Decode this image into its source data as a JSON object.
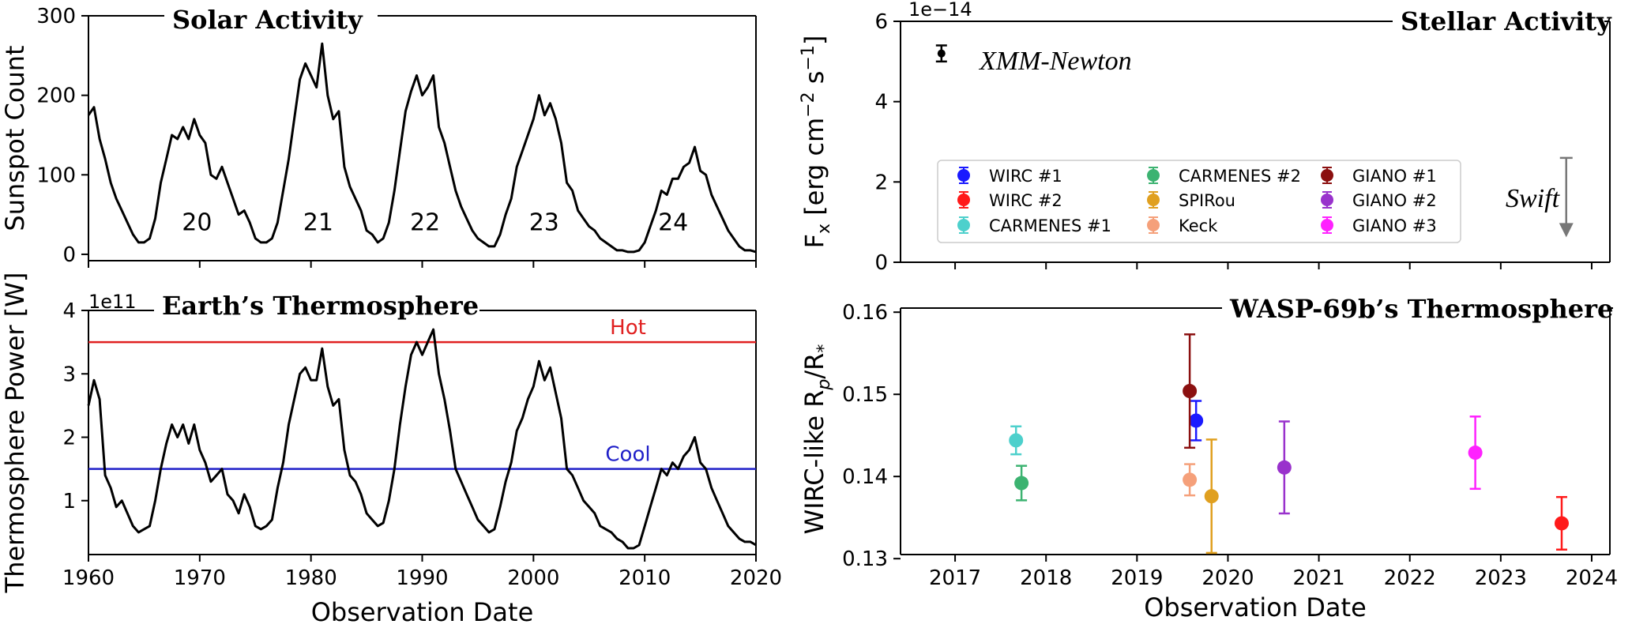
{
  "chart_data": [
    {
      "id": "solar",
      "type": "line",
      "title": "Solar Activity",
      "xlabel": "",
      "ylabel": "Sunspot Count",
      "xlim": [
        1960,
        2020
      ],
      "ylim": [
        -8,
        300
      ],
      "yticks": [
        0,
        100,
        200,
        300
      ],
      "xticks": [
        1960,
        1970,
        1980,
        1990,
        2000,
        2010,
        2020
      ],
      "cycle_labels": [
        {
          "text": "20",
          "x": 1968.4,
          "y": 40
        },
        {
          "text": "21",
          "x": 1979.3,
          "y": 40
        },
        {
          "text": "22",
          "x": 1988.9,
          "y": 40
        },
        {
          "text": "23",
          "x": 1999.6,
          "y": 40
        },
        {
          "text": "24",
          "x": 2011.2,
          "y": 40
        }
      ],
      "series": [
        {
          "name": "Sunspot Count",
          "color": "#000000",
          "x": [
            1960,
            1960.5,
            1961,
            1961.5,
            1962,
            1962.5,
            1963,
            1963.5,
            1964,
            1964.5,
            1965,
            1965.5,
            1966,
            1966.5,
            1967,
            1967.5,
            1968,
            1968.5,
            1969,
            1969.5,
            1970,
            1970.5,
            1971,
            1971.5,
            1972,
            1972.5,
            1973,
            1973.5,
            1974,
            1974.5,
            1975,
            1975.5,
            1976,
            1976.5,
            1977,
            1977.5,
            1978,
            1978.5,
            1979,
            1979.5,
            1980,
            1980.5,
            1981,
            1981.5,
            1982,
            1982.5,
            1983,
            1983.5,
            1984,
            1984.5,
            1985,
            1985.5,
            1986,
            1986.5,
            1987,
            1987.5,
            1988,
            1988.5,
            1989,
            1989.5,
            1990,
            1990.5,
            1991,
            1991.5,
            1992,
            1992.5,
            1993,
            1993.5,
            1994,
            1994.5,
            1995,
            1995.5,
            1996,
            1996.5,
            1997,
            1997.5,
            1998,
            1998.5,
            1999,
            1999.5,
            2000,
            2000.5,
            2001,
            2001.5,
            2002,
            2002.5,
            2003,
            2003.5,
            2004,
            2004.5,
            2005,
            2005.5,
            2006,
            2006.5,
            2007,
            2007.5,
            2008,
            2008.5,
            2009,
            2009.5,
            2010,
            2010.5,
            2011,
            2011.5,
            2012,
            2012.5,
            2013,
            2013.5,
            2014,
            2014.5,
            2015,
            2015.5,
            2016,
            2016.5,
            2017,
            2017.5,
            2018,
            2018.5,
            2019,
            2019.5,
            2020
          ],
          "y": [
            175,
            185,
            145,
            120,
            90,
            70,
            55,
            40,
            25,
            15,
            15,
            20,
            45,
            90,
            120,
            150,
            145,
            160,
            145,
            170,
            150,
            140,
            100,
            95,
            110,
            90,
            70,
            50,
            55,
            40,
            20,
            15,
            15,
            20,
            40,
            80,
            120,
            170,
            220,
            240,
            225,
            210,
            265,
            200,
            170,
            180,
            110,
            85,
            70,
            55,
            30,
            25,
            15,
            20,
            40,
            80,
            130,
            180,
            205,
            225,
            200,
            210,
            225,
            160,
            140,
            110,
            80,
            60,
            45,
            30,
            20,
            15,
            10,
            10,
            25,
            50,
            70,
            110,
            130,
            150,
            170,
            200,
            175,
            190,
            170,
            140,
            90,
            80,
            55,
            45,
            35,
            30,
            20,
            15,
            10,
            5,
            5,
            3,
            3,
            5,
            15,
            35,
            55,
            80,
            75,
            95,
            95,
            110,
            115,
            135,
            105,
            100,
            75,
            60,
            45,
            30,
            20,
            10,
            5,
            5,
            3
          ]
        }
      ]
    },
    {
      "id": "earth",
      "type": "line",
      "title": "Earth’s Thermosphere",
      "xlabel": "Observation Date",
      "ylabel": "Thermosphere Power [W]",
      "y_multiplier": "1e11",
      "xlim": [
        1960,
        2020
      ],
      "ylim": [
        0.15,
        4.0
      ],
      "yticks": [
        1,
        2,
        3,
        4
      ],
      "xticks": [
        1960,
        1970,
        1980,
        1990,
        2000,
        2010,
        2020
      ],
      "hlines": [
        {
          "name": "Hot",
          "value": 3.5,
          "color": "#e02020"
        },
        {
          "name": "Cool",
          "value": 1.5,
          "color": "#1f1fc8"
        }
      ],
      "series": [
        {
          "name": "Thermosphere Power",
          "color": "#000000",
          "x": [
            1960,
            1960.5,
            1961,
            1961.5,
            1962,
            1962.5,
            1963,
            1963.5,
            1964,
            1964.5,
            1965,
            1965.5,
            1966,
            1966.5,
            1967,
            1967.5,
            1968,
            1968.5,
            1969,
            1969.5,
            1970,
            1970.5,
            1971,
            1971.5,
            1972,
            1972.5,
            1973,
            1973.5,
            1974,
            1974.5,
            1975,
            1975.5,
            1976,
            1976.5,
            1977,
            1977.5,
            1978,
            1978.5,
            1979,
            1979.5,
            1980,
            1980.5,
            1981,
            1981.5,
            1982,
            1982.5,
            1983,
            1983.5,
            1984,
            1984.5,
            1985,
            1985.5,
            1986,
            1986.5,
            1987,
            1987.5,
            1988,
            1988.5,
            1989,
            1989.5,
            1990,
            1990.5,
            1991,
            1991.5,
            1992,
            1992.5,
            1993,
            1993.5,
            1994,
            1994.5,
            1995,
            1995.5,
            1996,
            1996.5,
            1997,
            1997.5,
            1998,
            1998.5,
            1999,
            1999.5,
            2000,
            2000.5,
            2001,
            2001.5,
            2002,
            2002.5,
            2003,
            2003.5,
            2004,
            2004.5,
            2005,
            2005.5,
            2006,
            2006.5,
            2007,
            2007.5,
            2008,
            2008.5,
            2009,
            2009.5,
            2010,
            2010.5,
            2011,
            2011.5,
            2012,
            2012.5,
            2013,
            2013.5,
            2014,
            2014.5,
            2015,
            2015.5,
            2016,
            2016.5,
            2017,
            2017.5,
            2018,
            2018.5,
            2019,
            2019.5,
            2020
          ],
          "y": [
            2.5,
            2.9,
            2.6,
            1.4,
            1.2,
            0.9,
            1.0,
            0.8,
            0.6,
            0.5,
            0.55,
            0.6,
            1.0,
            1.5,
            1.9,
            2.2,
            2.0,
            2.2,
            1.9,
            2.2,
            1.8,
            1.6,
            1.3,
            1.4,
            1.5,
            1.1,
            1.0,
            0.8,
            1.1,
            0.9,
            0.6,
            0.55,
            0.6,
            0.7,
            1.2,
            1.6,
            2.2,
            2.6,
            3.0,
            3.1,
            2.9,
            2.9,
            3.4,
            2.8,
            2.5,
            2.6,
            1.8,
            1.4,
            1.3,
            1.1,
            0.8,
            0.7,
            0.6,
            0.65,
            1.0,
            1.5,
            2.2,
            2.8,
            3.3,
            3.5,
            3.3,
            3.5,
            3.7,
            3.0,
            2.6,
            2.1,
            1.5,
            1.3,
            1.1,
            0.9,
            0.7,
            0.6,
            0.5,
            0.55,
            0.9,
            1.3,
            1.6,
            2.1,
            2.3,
            2.6,
            2.8,
            3.2,
            2.9,
            3.1,
            2.7,
            2.3,
            1.5,
            1.4,
            1.2,
            1.0,
            0.9,
            0.8,
            0.6,
            0.55,
            0.5,
            0.4,
            0.35,
            0.25,
            0.25,
            0.3,
            0.6,
            0.9,
            1.2,
            1.5,
            1.4,
            1.6,
            1.5,
            1.7,
            1.8,
            2.0,
            1.6,
            1.5,
            1.2,
            1.0,
            0.8,
            0.6,
            0.5,
            0.4,
            0.35,
            0.35,
            0.3
          ]
        }
      ]
    },
    {
      "id": "stellar",
      "type": "scatter",
      "title": "Stellar Activity",
      "xlabel": "",
      "ylabel": "F_x [erg cm^-2 s^-1]",
      "y_multiplier": "1e−14",
      "xlim": [
        2016.4,
        2024.2
      ],
      "ylim": [
        0,
        6
      ],
      "yticks": [
        0,
        2,
        4,
        6
      ],
      "xticks": [
        2017,
        2018,
        2019,
        2020,
        2021,
        2022,
        2023,
        2024
      ],
      "points": [
        {
          "name": "XMM-Newton",
          "x": 2016.85,
          "y": 5.2,
          "err": 0.2,
          "color": "#000000"
        },
        {
          "name": "Swift",
          "x": 2023.72,
          "y_upper_limit": 2.6,
          "y_arrow_end": 0.7,
          "color": "#777777"
        }
      ],
      "annotations": [
        "XMM-Newton",
        "Swift"
      ]
    },
    {
      "id": "wasp",
      "type": "scatter",
      "title": "WASP-69b’s Thermosphere",
      "xlabel": "Observation Date",
      "ylabel": "WIRC-like Rp/R*",
      "xlim": [
        2016.4,
        2024.2
      ],
      "ylim": [
        0.1305,
        0.1605
      ],
      "yticks": [
        0.13,
        0.14,
        0.15,
        0.16
      ],
      "ytick_labels": [
        "0.13",
        "0.14",
        "0.15",
        "0.16"
      ],
      "xticks": [
        2017,
        2018,
        2019,
        2020,
        2021,
        2022,
        2023,
        2024
      ],
      "series": [
        {
          "name": "WIRC #1",
          "x": 2019.65,
          "y": 0.1468,
          "err": 0.0024,
          "color": "#1a1aff"
        },
        {
          "name": "WIRC #2",
          "x": 2023.67,
          "y": 0.1343,
          "err": 0.0032,
          "color": "#ff1a1a"
        },
        {
          "name": "CARMENES #1",
          "x": 2017.67,
          "y": 0.1444,
          "err": 0.0017,
          "color": "#4dd0cc"
        },
        {
          "name": "CARMENES #2",
          "x": 2017.73,
          "y": 0.1392,
          "err": 0.0021,
          "color": "#3cb371"
        },
        {
          "name": "SPIRou",
          "x": 2019.82,
          "y": 0.1376,
          "err": 0.0069,
          "color": "#e0a020"
        },
        {
          "name": "Keck",
          "x": 2019.58,
          "y": 0.1396,
          "err": 0.0019,
          "color": "#f5a07a"
        },
        {
          "name": "GIANO #1",
          "x": 2019.58,
          "y": 0.1504,
          "err": 0.0069,
          "color": "#8b1010"
        },
        {
          "name": "GIANO #2",
          "x": 2020.62,
          "y": 0.1411,
          "err": 0.0056,
          "color": "#9932cc"
        },
        {
          "name": "GIANO #3",
          "x": 2022.72,
          "y": 0.1429,
          "err": 0.0044,
          "color": "#ff22ff"
        }
      ]
    }
  ]
}
